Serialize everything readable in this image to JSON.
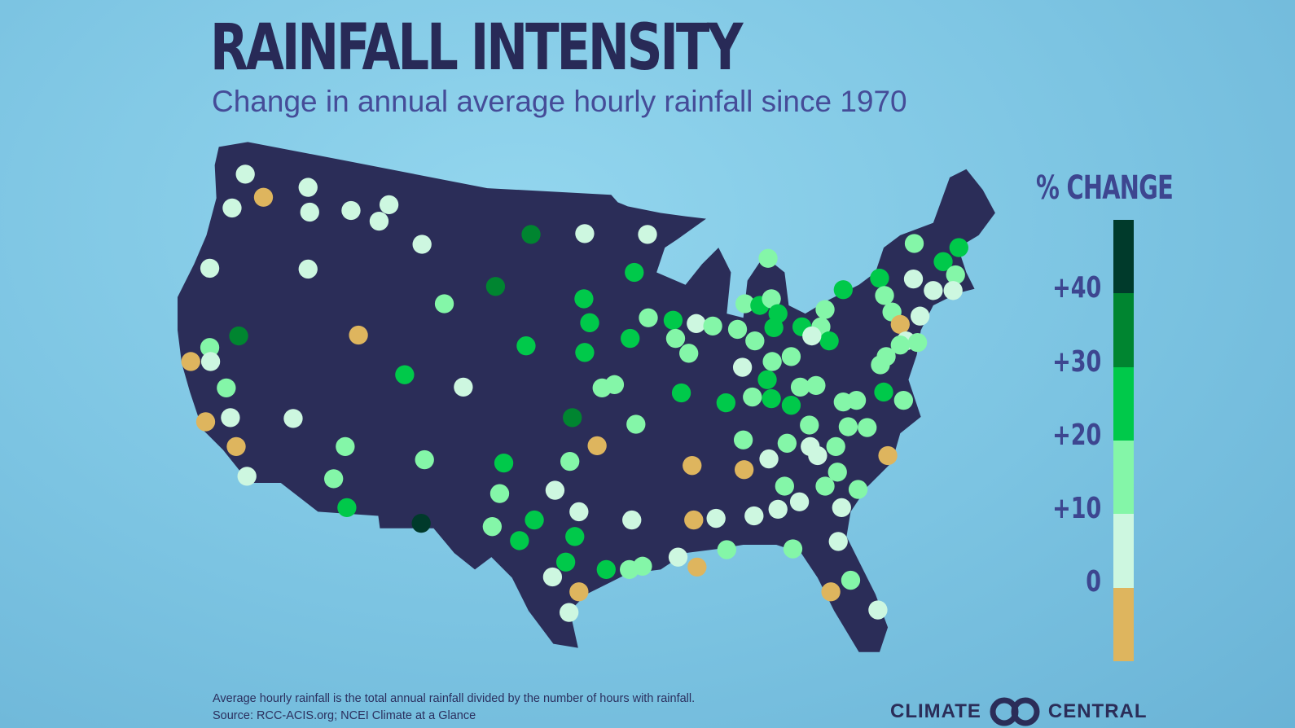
{
  "header": {
    "title": "RAINFALL INTENSITY",
    "subtitle": "Change in annual average hourly rainfall since 1970"
  },
  "legend": {
    "title": "% CHANGE",
    "labels": [
      "+40",
      "+30",
      "+20",
      "+10",
      "0"
    ],
    "bins": [
      {
        "range": ">40",
        "color": "#003a2b"
      },
      {
        "range": "30 to 40",
        "color": "#008530"
      },
      {
        "range": "20 to 30",
        "color": "#00c94a"
      },
      {
        "range": "10 to 20",
        "color": "#84f6a8"
      },
      {
        "range": "0 to 10",
        "color": "#cdf7e0"
      },
      {
        "range": "<0",
        "color": "#deb55e"
      }
    ]
  },
  "map": {
    "land_color": "#2b2d58",
    "station_bins": [
      1,
      0,
      1,
      1,
      1,
      1,
      1,
      1,
      1,
      1,
      1,
      2,
      4,
      0,
      2,
      0,
      1,
      2,
      1,
      0,
      1,
      0,
      1,
      2,
      2,
      3,
      3,
      1,
      2,
      5,
      4,
      1,
      1,
      4,
      3,
      3,
      3,
      2,
      3,
      3,
      3,
      3,
      2,
      2,
      4,
      2,
      3,
      3,
      2,
      0,
      2,
      1,
      2,
      3,
      3,
      1,
      3,
      3,
      1,
      3,
      0,
      1,
      2,
      2,
      1,
      1,
      2,
      2,
      2,
      2,
      2,
      3,
      2,
      3,
      2,
      3,
      2,
      3,
      2,
      3,
      1,
      2,
      2,
      2,
      1,
      3,
      2,
      2,
      3,
      2,
      3,
      3,
      2,
      3,
      3,
      1,
      2,
      1,
      1,
      3,
      3,
      2,
      2,
      0,
      1,
      1,
      2,
      2,
      2,
      2,
      3,
      2,
      2,
      2,
      2,
      2,
      2,
      2,
      2,
      1,
      1,
      2,
      1,
      0,
      0,
      0,
      2,
      2,
      2,
      2,
      1,
      1,
      1,
      1,
      0,
      1,
      2,
      1,
      0,
      2,
      1,
      2,
      0,
      1
    ]
  },
  "footer": {
    "note": "Average hourly rainfall is the total annual rainfall divided by the number of hours with rainfall.",
    "source": "Source: RCC-ACIS.org; NCEI Climate at a Glance",
    "logo_left": "CLIMATE",
    "logo_right": "CENTRAL"
  }
}
